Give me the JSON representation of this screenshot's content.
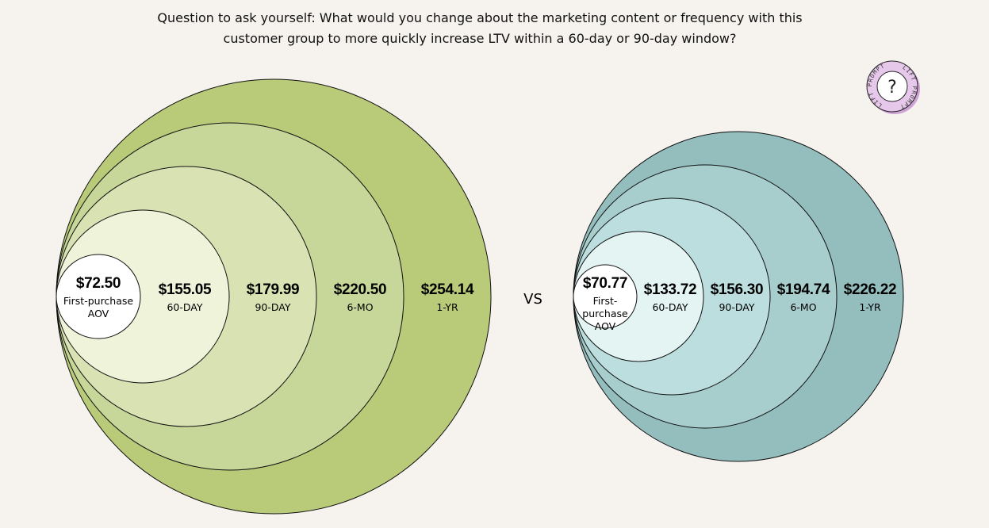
{
  "question": {
    "line1": "Question to ask yourself: What would you change about the marketing content or frequency with this",
    "line2": "customer group to more quickly increase LTV within a 60-day or 90-day window?"
  },
  "badge": {
    "ring_text": "LIFT PROMPT",
    "glyph": "?",
    "colors": {
      "fill": "#e6c8ea",
      "shadow": "#cfa3d6",
      "inner": "#ffffff"
    }
  },
  "vs_label": "VS",
  "chart_data": [
    {
      "type": "nested-bubble",
      "name": "group-a",
      "palette": [
        "#ffffff",
        "#eef3da",
        "#d8e2b2",
        "#c7d799",
        "#b9cb79"
      ],
      "series": [
        {
          "label": "First-purchase AOV",
          "label_lines": [
            "First-purchase",
            "AOV"
          ],
          "value": 72.5,
          "value_text": "$72.50"
        },
        {
          "label": "60-DAY",
          "label_lines": [
            "60-DAY"
          ],
          "value": 155.05,
          "value_text": "$155.05"
        },
        {
          "label": "90-DAY",
          "label_lines": [
            "90-DAY"
          ],
          "value": 179.99,
          "value_text": "$179.99"
        },
        {
          "label": "6-MO",
          "label_lines": [
            "6-MO"
          ],
          "value": 220.5,
          "value_text": "$220.50"
        },
        {
          "label": "1-YR",
          "label_lines": [
            "1-YR"
          ],
          "value": 254.14,
          "value_text": "$254.14"
        }
      ]
    },
    {
      "type": "nested-bubble",
      "name": "group-b",
      "palette": [
        "#ffffff",
        "#e3f4f3",
        "#bcdedf",
        "#a7cecd",
        "#94bdbd"
      ],
      "series": [
        {
          "label": "First-purchase AOV",
          "label_lines": [
            "First-",
            "purchase",
            "AOV"
          ],
          "value": 70.77,
          "value_text": "$70.77"
        },
        {
          "label": "60-DAY",
          "label_lines": [
            "60-DAY"
          ],
          "value": 133.72,
          "value_text": "$133.72"
        },
        {
          "label": "90-DAY",
          "label_lines": [
            "90-DAY"
          ],
          "value": 156.3,
          "value_text": "$156.30"
        },
        {
          "label": "6-MO",
          "label_lines": [
            "6-MO"
          ],
          "value": 194.74,
          "value_text": "$194.74"
        },
        {
          "label": "1-YR",
          "label_lines": [
            "1-YR"
          ],
          "value": 226.22,
          "value_text": "$226.22"
        }
      ]
    }
  ]
}
